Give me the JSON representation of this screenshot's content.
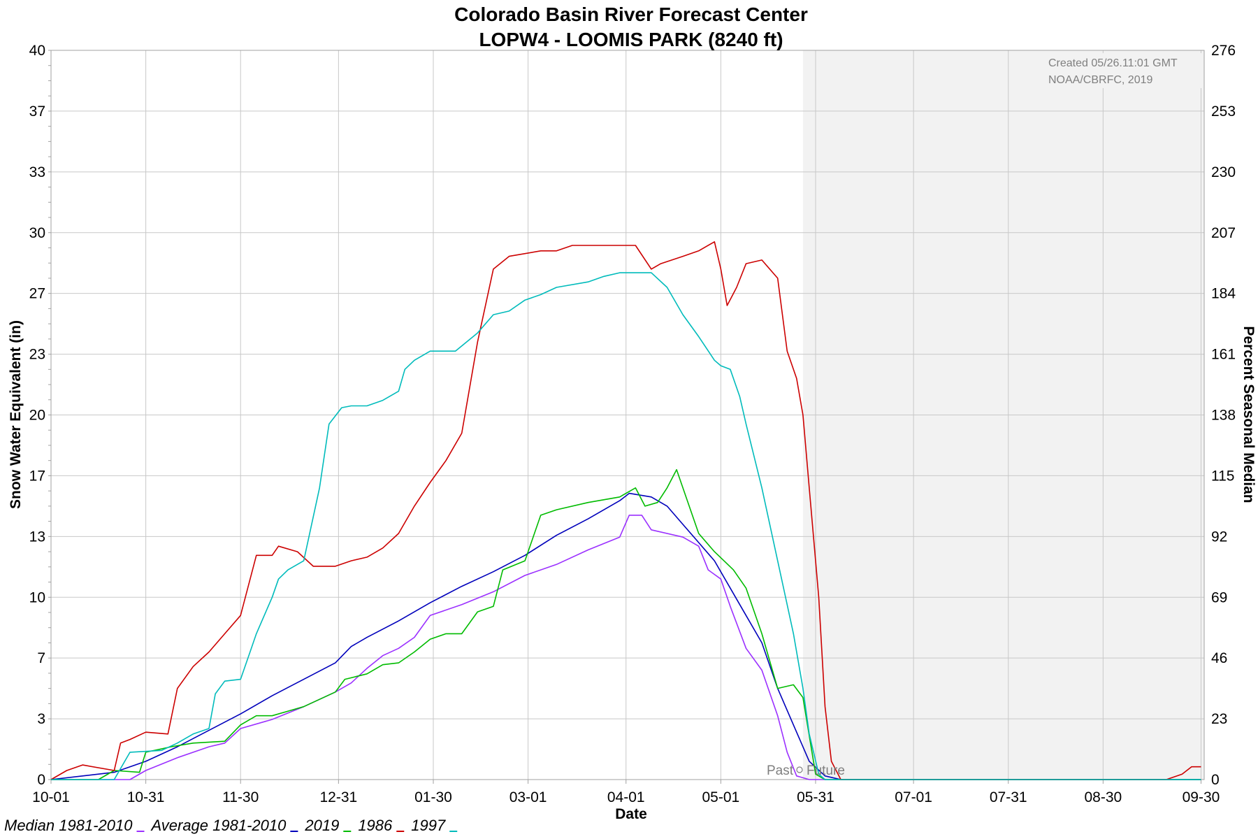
{
  "chart_data": {
    "type": "line",
    "title": "Colorado Basin River Forecast Center",
    "subtitle": "LOPW4 - LOOMIS PARK (8240 ft)",
    "xlabel": "Date",
    "ylabel": "Snow Water Equivalent (in)",
    "ylabel_right": "Percent Seasonal Median",
    "xlim": [
      0,
      365
    ],
    "ylim": [
      0,
      40
    ],
    "grid": true,
    "x_ticks": [
      {
        "day": 0,
        "label": "10-01"
      },
      {
        "day": 30,
        "label": "10-31"
      },
      {
        "day": 60,
        "label": "11-30"
      },
      {
        "day": 91,
        "label": "12-31"
      },
      {
        "day": 121,
        "label": "01-30"
      },
      {
        "day": 151,
        "label": "03-01"
      },
      {
        "day": 182,
        "label": "04-01"
      },
      {
        "day": 212,
        "label": "05-01"
      },
      {
        "day": 242,
        "label": "05-31"
      },
      {
        "day": 273,
        "label": "07-01"
      },
      {
        "day": 303,
        "label": "07-31"
      },
      {
        "day": 333,
        "label": "08-30"
      },
      {
        "day": 364,
        "label": "09-30"
      }
    ],
    "y_ticks_left": [
      {
        "value": 0,
        "label": "0"
      },
      {
        "value": 3.33,
        "label": "3"
      },
      {
        "value": 6.67,
        "label": "7"
      },
      {
        "value": 10,
        "label": "10"
      },
      {
        "value": 13.33,
        "label": "13"
      },
      {
        "value": 16.67,
        "label": "17"
      },
      {
        "value": 20,
        "label": "20"
      },
      {
        "value": 23.33,
        "label": "23"
      },
      {
        "value": 26.67,
        "label": "27"
      },
      {
        "value": 30,
        "label": "30"
      },
      {
        "value": 33.33,
        "label": "33"
      },
      {
        "value": 36.67,
        "label": "37"
      },
      {
        "value": 40,
        "label": "40"
      }
    ],
    "y_ticks_right": [
      "0",
      "23",
      "46",
      "69",
      "92",
      "115",
      "138",
      "161",
      "184",
      "207",
      "230",
      "253",
      "276"
    ],
    "future_start_day": 238,
    "past_label": "Past",
    "future_label": "Future",
    "credit_lines": [
      "Created 05/26.11:01 GMT",
      "NOAA/CBRFC, 2019"
    ],
    "series": [
      {
        "name": "Median 1981-2010",
        "color": "#9b30ff",
        "points": [
          [
            0,
            0
          ],
          [
            25,
            0
          ],
          [
            30,
            0.5
          ],
          [
            40,
            1.2
          ],
          [
            50,
            1.8
          ],
          [
            55,
            2
          ],
          [
            60,
            2.8
          ],
          [
            70,
            3.3
          ],
          [
            80,
            4
          ],
          [
            90,
            4.8
          ],
          [
            95,
            5.3
          ],
          [
            100,
            6.1
          ],
          [
            105,
            6.8
          ],
          [
            110,
            7.2
          ],
          [
            115,
            7.8
          ],
          [
            120,
            9
          ],
          [
            130,
            9.6
          ],
          [
            140,
            10.3
          ],
          [
            150,
            11.2
          ],
          [
            160,
            11.8
          ],
          [
            170,
            12.6
          ],
          [
            180,
            13.3
          ],
          [
            183,
            14.5
          ],
          [
            187,
            14.5
          ],
          [
            190,
            13.7
          ],
          [
            200,
            13.3
          ],
          [
            205,
            12.8
          ],
          [
            208,
            11.5
          ],
          [
            212,
            11
          ],
          [
            215,
            9.5
          ],
          [
            220,
            7.2
          ],
          [
            225,
            6
          ],
          [
            230,
            3.5
          ],
          [
            233,
            1.5
          ],
          [
            236,
            0.2
          ],
          [
            240,
            0
          ],
          [
            364,
            0
          ]
        ]
      },
      {
        "name": "Average 1981-2010",
        "color": "#0000bb",
        "points": [
          [
            0,
            0
          ],
          [
            10,
            0.2
          ],
          [
            20,
            0.4
          ],
          [
            30,
            1
          ],
          [
            40,
            1.8
          ],
          [
            50,
            2.7
          ],
          [
            60,
            3.6
          ],
          [
            70,
            4.6
          ],
          [
            80,
            5.5
          ],
          [
            90,
            6.4
          ],
          [
            95,
            7.3
          ],
          [
            100,
            7.8
          ],
          [
            110,
            8.7
          ],
          [
            120,
            9.7
          ],
          [
            130,
            10.6
          ],
          [
            140,
            11.4
          ],
          [
            150,
            12.3
          ],
          [
            160,
            13.4
          ],
          [
            170,
            14.3
          ],
          [
            180,
            15.3
          ],
          [
            183,
            15.7
          ],
          [
            190,
            15.5
          ],
          [
            195,
            15
          ],
          [
            200,
            14
          ],
          [
            205,
            13
          ],
          [
            210,
            12
          ],
          [
            215,
            10.5
          ],
          [
            220,
            9
          ],
          [
            225,
            7.5
          ],
          [
            230,
            5
          ],
          [
            235,
            3
          ],
          [
            240,
            1
          ],
          [
            245,
            0.2
          ],
          [
            250,
            0
          ],
          [
            364,
            0
          ]
        ]
      },
      {
        "name": "2019",
        "color": "#00bb00",
        "points": [
          [
            0,
            0
          ],
          [
            15,
            0
          ],
          [
            20,
            0.5
          ],
          [
            28,
            0.4
          ],
          [
            30,
            1.5
          ],
          [
            38,
            1.8
          ],
          [
            45,
            2
          ],
          [
            55,
            2.1
          ],
          [
            60,
            3
          ],
          [
            65,
            3.5
          ],
          [
            70,
            3.5
          ],
          [
            80,
            4
          ],
          [
            90,
            4.8
          ],
          [
            93,
            5.5
          ],
          [
            100,
            5.8
          ],
          [
            105,
            6.3
          ],
          [
            110,
            6.4
          ],
          [
            115,
            7
          ],
          [
            120,
            7.7
          ],
          [
            125,
            8
          ],
          [
            130,
            8
          ],
          [
            135,
            9.2
          ],
          [
            140,
            9.5
          ],
          [
            143,
            11.5
          ],
          [
            150,
            12
          ],
          [
            155,
            14.5
          ],
          [
            160,
            14.8
          ],
          [
            170,
            15.2
          ],
          [
            180,
            15.5
          ],
          [
            185,
            16
          ],
          [
            188,
            15
          ],
          [
            192,
            15.2
          ],
          [
            195,
            16
          ],
          [
            198,
            17
          ],
          [
            200,
            16
          ],
          [
            205,
            13.5
          ],
          [
            210,
            12.5
          ],
          [
            213,
            12
          ],
          [
            216,
            11.5
          ],
          [
            220,
            10.5
          ],
          [
            225,
            8
          ],
          [
            230,
            5
          ],
          [
            235,
            5.2
          ],
          [
            238,
            4.5
          ],
          [
            242,
            0.3
          ],
          [
            245,
            0
          ],
          [
            364,
            0
          ]
        ]
      },
      {
        "name": "1986",
        "color": "#cc0000",
        "points": [
          [
            0,
            0
          ],
          [
            5,
            0.5
          ],
          [
            10,
            0.8
          ],
          [
            20,
            0.5
          ],
          [
            22,
            2
          ],
          [
            25,
            2.2
          ],
          [
            30,
            2.6
          ],
          [
            37,
            2.5
          ],
          [
            40,
            5
          ],
          [
            45,
            6.2
          ],
          [
            50,
            7
          ],
          [
            55,
            8
          ],
          [
            60,
            9
          ],
          [
            65,
            12.3
          ],
          [
            70,
            12.3
          ],
          [
            72,
            12.8
          ],
          [
            78,
            12.5
          ],
          [
            83,
            11.7
          ],
          [
            90,
            11.7
          ],
          [
            95,
            12
          ],
          [
            100,
            12.2
          ],
          [
            105,
            12.7
          ],
          [
            110,
            13.5
          ],
          [
            115,
            15
          ],
          [
            120,
            16.3
          ],
          [
            125,
            17.5
          ],
          [
            130,
            19
          ],
          [
            135,
            24
          ],
          [
            140,
            28
          ],
          [
            145,
            28.7
          ],
          [
            155,
            29
          ],
          [
            160,
            29
          ],
          [
            165,
            29.3
          ],
          [
            175,
            29.3
          ],
          [
            185,
            29.3
          ],
          [
            190,
            28
          ],
          [
            193,
            28.3
          ],
          [
            200,
            28.7
          ],
          [
            205,
            29
          ],
          [
            210,
            29.5
          ],
          [
            212,
            28
          ],
          [
            214,
            26
          ],
          [
            217,
            27
          ],
          [
            220,
            28.3
          ],
          [
            225,
            28.5
          ],
          [
            230,
            27.5
          ],
          [
            233,
            23.5
          ],
          [
            236,
            22
          ],
          [
            238,
            20
          ],
          [
            240,
            16
          ],
          [
            243,
            10
          ],
          [
            245,
            4
          ],
          [
            247,
            1
          ],
          [
            250,
            0
          ],
          [
            353,
            0
          ],
          [
            358,
            0.3
          ],
          [
            361,
            0.7
          ],
          [
            364,
            0.7
          ]
        ]
      },
      {
        "name": "1997",
        "color": "#00bbbb",
        "points": [
          [
            0,
            0
          ],
          [
            20,
            0
          ],
          [
            25,
            1.5
          ],
          [
            35,
            1.6
          ],
          [
            40,
            2
          ],
          [
            45,
            2.5
          ],
          [
            50,
            2.8
          ],
          [
            52,
            4.7
          ],
          [
            55,
            5.4
          ],
          [
            60,
            5.5
          ],
          [
            63,
            7
          ],
          [
            65,
            8
          ],
          [
            70,
            10
          ],
          [
            72,
            11
          ],
          [
            75,
            11.5
          ],
          [
            80,
            12
          ],
          [
            85,
            16
          ],
          [
            88,
            19.5
          ],
          [
            92,
            20.4
          ],
          [
            95,
            20.5
          ],
          [
            100,
            20.5
          ],
          [
            105,
            20.8
          ],
          [
            110,
            21.3
          ],
          [
            112,
            22.5
          ],
          [
            115,
            23
          ],
          [
            120,
            23.5
          ],
          [
            128,
            23.5
          ],
          [
            135,
            24.5
          ],
          [
            140,
            25.5
          ],
          [
            145,
            25.7
          ],
          [
            150,
            26.3
          ],
          [
            155,
            26.6
          ],
          [
            160,
            27
          ],
          [
            170,
            27.3
          ],
          [
            175,
            27.6
          ],
          [
            180,
            27.8
          ],
          [
            190,
            27.8
          ],
          [
            195,
            27
          ],
          [
            200,
            25.5
          ],
          [
            205,
            24.3
          ],
          [
            210,
            23
          ],
          [
            212,
            22.7
          ],
          [
            215,
            22.5
          ],
          [
            218,
            21
          ],
          [
            220,
            19.5
          ],
          [
            225,
            16
          ],
          [
            230,
            12
          ],
          [
            235,
            8
          ],
          [
            238,
            5
          ],
          [
            240,
            2.5
          ],
          [
            243,
            0.3
          ],
          [
            245,
            0
          ],
          [
            364,
            0
          ]
        ]
      }
    ],
    "legend": {
      "position": "bottom-left"
    }
  }
}
